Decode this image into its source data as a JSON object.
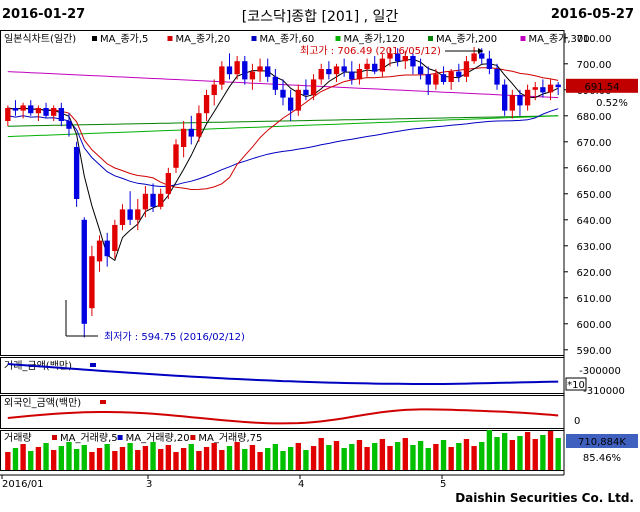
{
  "header": {
    "start_date": "2016-01-27",
    "end_date": "2016-05-27",
    "title": "[코스닥]종합 [201] , 일간"
  },
  "legend": {
    "main_label": "일본식차트(일간)",
    "items": [
      {
        "label": "MA_종가,5",
        "color": "#000000"
      },
      {
        "label": "MA_종가,20",
        "color": "#d00000"
      },
      {
        "label": "MA_종가,60",
        "color": "#0000c0"
      },
      {
        "label": "MA_종가,120",
        "color": "#00b000"
      },
      {
        "label": "MA_종가,200",
        "color": "#008000"
      },
      {
        "label": "MA_종가,300",
        "color": "#c000c0"
      }
    ]
  },
  "annotations": {
    "high": "최고가 : 706.49 (2016/05/12)",
    "low": "최저가 : 594.75 (2016/02/12)"
  },
  "price_panel": {
    "current_price": "691.54",
    "change_pct": "0.52%",
    "yticks": [
      "710.00",
      "700.00",
      "690.00",
      "680.00",
      "670.00",
      "660.00",
      "650.00",
      "640.00",
      "630.00",
      "620.00",
      "610.00",
      "600.00",
      "590.00"
    ]
  },
  "panel2": {
    "label": "거래_금액(백만)",
    "yticks": [
      "-300000",
      "-310000"
    ],
    "badge": "*10"
  },
  "panel3": {
    "label": "외국인_금액(백만)",
    "yticks": [
      "0"
    ]
  },
  "panel4": {
    "label": "거래량",
    "ma_items": [
      "MA_거래량,5",
      "MA_거래량,20",
      "MA_거래량,75"
    ],
    "value": "710,884K",
    "pct": "85.46%"
  },
  "xaxis": {
    "labels": [
      "2016/01",
      "3",
      "4",
      "5"
    ]
  },
  "footer": "Daishin Securities Co. Ltd.",
  "chart_data": {
    "type": "candlestick",
    "ylim": [
      588,
      713
    ],
    "high": 706.49,
    "low": 594.75,
    "candles": [
      [
        678,
        684,
        676,
        683
      ],
      [
        683,
        686,
        680,
        682
      ],
      [
        682,
        685,
        679,
        684
      ],
      [
        684,
        686,
        680,
        681
      ],
      [
        681,
        684,
        678,
        683
      ],
      [
        683,
        685,
        679,
        680
      ],
      [
        680,
        684,
        678,
        683
      ],
      [
        683,
        685,
        676,
        678
      ],
      [
        678,
        681,
        672,
        675
      ],
      [
        668,
        670,
        645,
        648
      ],
      [
        640,
        641,
        594.75,
        600
      ],
      [
        606,
        630,
        603,
        626
      ],
      [
        624,
        634,
        620,
        632
      ],
      [
        632,
        635,
        622,
        626
      ],
      [
        628,
        640,
        625,
        638
      ],
      [
        638,
        646,
        636,
        644
      ],
      [
        644,
        651,
        638,
        640
      ],
      [
        640,
        648,
        636,
        644
      ],
      [
        644,
        653,
        641,
        650
      ],
      [
        650,
        654,
        643,
        645
      ],
      [
        645,
        652,
        644,
        650
      ],
      [
        650,
        660,
        648,
        658
      ],
      [
        660,
        671,
        658,
        669
      ],
      [
        668,
        678,
        664,
        675
      ],
      [
        675,
        680,
        669,
        672
      ],
      [
        672,
        684,
        670,
        681
      ],
      [
        681,
        690,
        678,
        688
      ],
      [
        688,
        694,
        684,
        692
      ],
      [
        692,
        701,
        690,
        699
      ],
      [
        699,
        704,
        694,
        696
      ],
      [
        696,
        703,
        694,
        701
      ],
      [
        701,
        703,
        692,
        694
      ],
      [
        694,
        700,
        690,
        697
      ],
      [
        697,
        702,
        693,
        699
      ],
      [
        699,
        702,
        693,
        695
      ],
      [
        695,
        698,
        688,
        690
      ],
      [
        690,
        694,
        684,
        687
      ],
      [
        687,
        690,
        678,
        682
      ],
      [
        682,
        692,
        680,
        690
      ],
      [
        690,
        694,
        686,
        688
      ],
      [
        688,
        696,
        686,
        694
      ],
      [
        694,
        700,
        692,
        698
      ],
      [
        698,
        701,
        694,
        696
      ],
      [
        696,
        700,
        693,
        699
      ],
      [
        699,
        702,
        695,
        697
      ],
      [
        697,
        701,
        692,
        694
      ],
      [
        694,
        700,
        692,
        698
      ],
      [
        698,
        702,
        695,
        700
      ],
      [
        700,
        703,
        696,
        697
      ],
      [
        697,
        704,
        695,
        702
      ],
      [
        702,
        706,
        699,
        704
      ],
      [
        704,
        706,
        699,
        701
      ],
      [
        701,
        705,
        698,
        703
      ],
      [
        703,
        704,
        696,
        699
      ],
      [
        699,
        702,
        694,
        696
      ],
      [
        696,
        699,
        688,
        692
      ],
      [
        692,
        698,
        690,
        696
      ],
      [
        696,
        699,
        692,
        693
      ],
      [
        693,
        698,
        690,
        697
      ],
      [
        697,
        700,
        693,
        695
      ],
      [
        695,
        703,
        693,
        701
      ],
      [
        701,
        706.49,
        700,
        704
      ],
      [
        704,
        706,
        700,
        702
      ],
      [
        702,
        705,
        696,
        698
      ],
      [
        698,
        700,
        690,
        692
      ],
      [
        692,
        694,
        680,
        682
      ],
      [
        682,
        690,
        679,
        688
      ],
      [
        688,
        690,
        680,
        684
      ],
      [
        684,
        692,
        682,
        690
      ],
      [
        690,
        693,
        686,
        691
      ],
      [
        691,
        694,
        687,
        689
      ],
      [
        689,
        694,
        686,
        692
      ],
      [
        692,
        693,
        688,
        691
      ]
    ]
  }
}
